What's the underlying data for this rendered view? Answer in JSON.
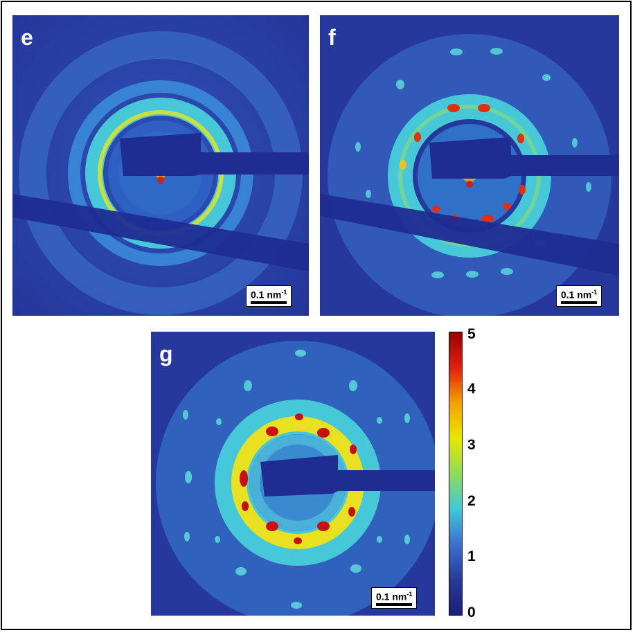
{
  "panels": [
    {
      "id": "e",
      "label": "e"
    },
    {
      "id": "f",
      "label": "f"
    },
    {
      "id": "g",
      "label": "g"
    }
  ],
  "scale_bar": {
    "value": "0.1 nm",
    "unit_exponent": "-1"
  },
  "colorbar": {
    "ticks": [
      "5",
      "4",
      "3",
      "2",
      "1",
      "0"
    ],
    "colors": [
      "#9b0000",
      "#e02010",
      "#f5a000",
      "#e8e800",
      "#8fdc5a",
      "#40c8d8",
      "#3a70d0",
      "#283a9a",
      "#1a1f7a"
    ]
  }
}
